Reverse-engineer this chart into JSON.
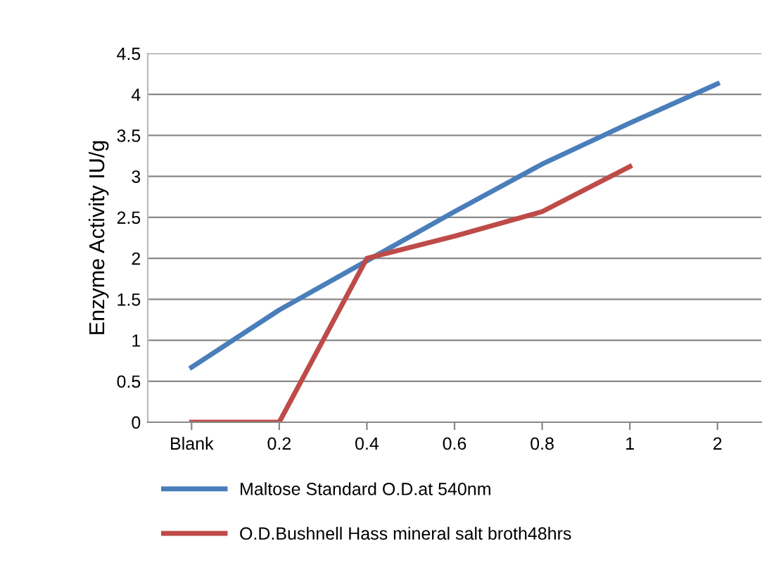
{
  "chart_data": {
    "type": "line",
    "ylabel": "Enzyme Activity IU/g",
    "categories": [
      "Blank",
      "0.2",
      "0.4",
      "0.6",
      "0.8",
      "1",
      "2"
    ],
    "series": [
      {
        "name": "Maltose Standard O.D.at 540nm",
        "color": "#4a7ebb",
        "values": [
          0.67,
          1.37,
          1.97,
          2.57,
          3.15,
          3.65,
          4.13
        ]
      },
      {
        "name": "O.D.Bushnell Hass mineral salt broth48hrs",
        "color": "#be4b48",
        "values": [
          0,
          0,
          2.0,
          2.27,
          2.57,
          3.12,
          null
        ]
      }
    ],
    "ylim": [
      0,
      4.5
    ],
    "yticks": [
      0,
      0.5,
      1,
      1.5,
      2,
      2.5,
      3,
      3.5,
      4,
      4.5
    ],
    "grid": "y",
    "legend": "bottom",
    "marker": "none",
    "line_style": "solid"
  }
}
